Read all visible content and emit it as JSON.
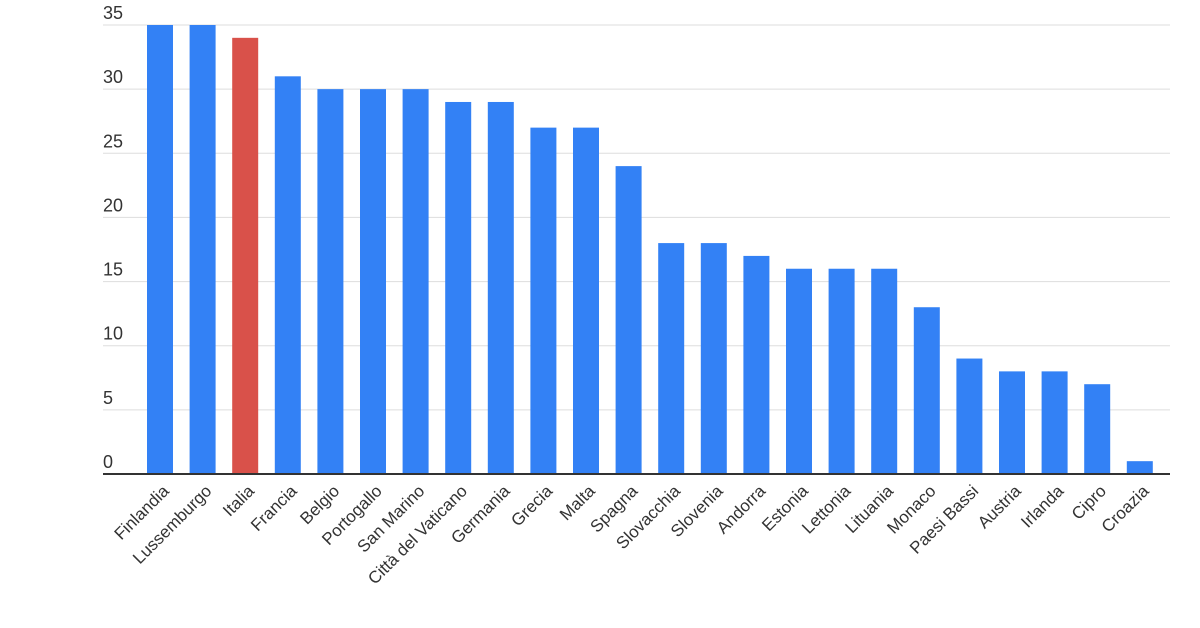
{
  "chart_data": {
    "type": "bar",
    "title": "",
    "xlabel": "",
    "ylabel": "",
    "ylim": [
      0,
      35
    ],
    "yticks": [
      0,
      5,
      10,
      15,
      20,
      25,
      30,
      35
    ],
    "grid": true,
    "categories": [
      "Finlandia",
      "Lussemburgo",
      "Italia",
      "Francia",
      "Belgio",
      "Portogallo",
      "San Marino",
      "Città del Vaticano",
      "Germania",
      "Grecia",
      "Malta",
      "Spagna",
      "Slovacchia",
      "Slovenia",
      "Andorra",
      "Estonia",
      "Lettonia",
      "Lituania",
      "Monaco",
      "Paesi Bassi",
      "Austria",
      "Irlanda",
      "Cipro",
      "Croazia"
    ],
    "values": [
      35,
      35,
      34,
      31,
      30,
      30,
      30,
      29,
      29,
      27,
      27,
      24,
      18,
      18,
      17,
      16,
      16,
      16,
      13,
      9,
      8,
      8,
      7,
      1
    ],
    "highlight_category": "Italia",
    "colors": {
      "bar": "#3381f5",
      "highlight": "#d9514a",
      "grid": "#dddddd",
      "axis": "#333333"
    }
  }
}
